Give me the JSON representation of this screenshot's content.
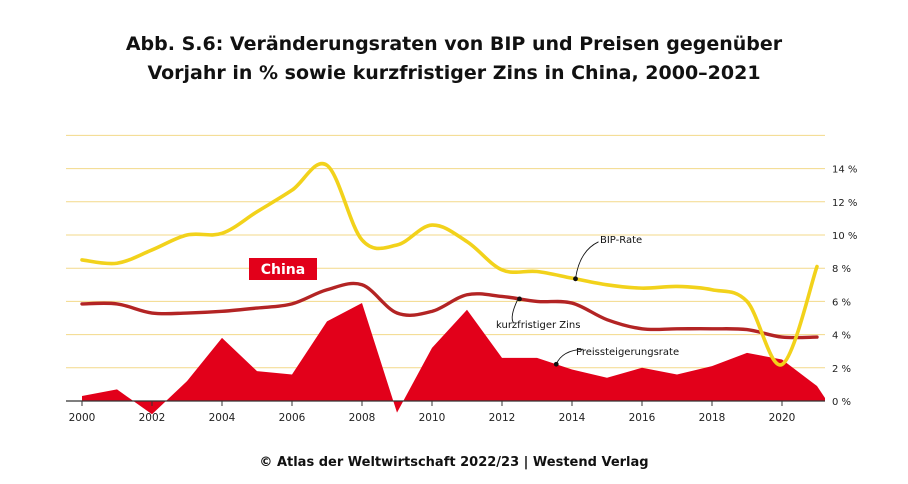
{
  "title": {
    "line1": "Abb. S.6: Veränderungsraten von BIP und Preisen gegenüber",
    "line2": "Vorjahr in % sowie kurzfristiger Zins in China, 2000–2021"
  },
  "footer": "© Atlas der Weltwirtschaft 2022/23 | Westend Verlag",
  "colors": {
    "bip": "#f2d21b",
    "zins": "#b32424",
    "preis": "#e2001a",
    "grid": "#f3d98a",
    "axis": "#333333",
    "badge": "#e2001a"
  },
  "chart_data": {
    "type": "line",
    "x": [
      2000,
      2001,
      2002,
      2003,
      2004,
      2005,
      2006,
      2007,
      2008,
      2009,
      2010,
      2011,
      2012,
      2013,
      2014,
      2015,
      2016,
      2017,
      2018,
      2019,
      2020,
      2021
    ],
    "xticks": [
      "2000",
      "2002",
      "2004",
      "2006",
      "2008",
      "2010",
      "2012",
      "2014",
      "2016",
      "2018",
      "2020"
    ],
    "yticks": [
      "0 %",
      "2 %",
      "4 %",
      "6 %",
      "8 %",
      "10 %",
      "12 %",
      "14 %"
    ],
    "ylim": [
      -0.5,
      16
    ],
    "badge": "China",
    "series": [
      {
        "name": "BIP-Rate",
        "kind": "line",
        "values": [
          8.5,
          8.3,
          9.1,
          10.0,
          10.1,
          11.4,
          12.7,
          14.2,
          9.7,
          9.4,
          10.6,
          9.6,
          7.9,
          7.8,
          7.4,
          7.0,
          6.8,
          6.9,
          6.7,
          6.0,
          2.2,
          8.1
        ]
      },
      {
        "name": "kurzfristiger Zins",
        "kind": "line",
        "values": [
          5.85,
          5.85,
          5.3,
          5.3,
          5.4,
          5.6,
          5.85,
          6.7,
          7.0,
          5.3,
          5.4,
          6.4,
          6.3,
          6.0,
          5.9,
          4.9,
          4.35,
          4.35,
          4.35,
          4.3,
          3.85,
          3.85
        ]
      },
      {
        "name": "Preissteigerungsrate",
        "kind": "area",
        "values": [
          0.3,
          0.7,
          -0.8,
          1.2,
          3.8,
          1.8,
          1.6,
          4.8,
          5.9,
          -0.7,
          3.2,
          5.5,
          2.6,
          2.6,
          1.9,
          1.4,
          2.0,
          1.6,
          2.1,
          2.9,
          2.5,
          0.9
        ]
      }
    ]
  }
}
